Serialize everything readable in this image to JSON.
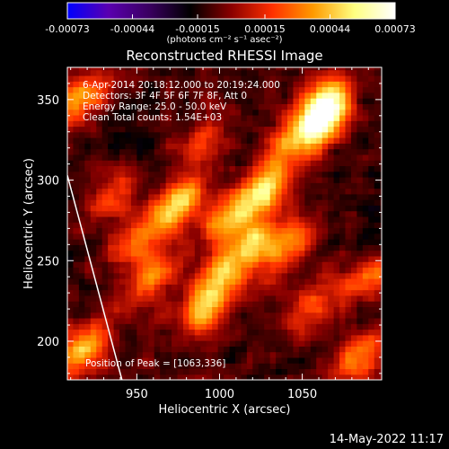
{
  "chart_data": {
    "type": "heatmap",
    "title": "Reconstructed RHESSI Image",
    "xlabel": "Heliocentric X (arcsec)",
    "ylabel": "Heliocentric Y (arcsec)",
    "xlim": [
      908,
      1098
    ],
    "ylim": [
      176,
      370
    ],
    "xticks": [
      950,
      1000,
      1050
    ],
    "yticks": [
      200,
      250,
      300,
      350
    ],
    "annotations": [
      "6-Apr-2014 20:18:12.000 to 20:19:24.000",
      "Detectors: 3F 4F 5F 6F 7F 8F, Att 0",
      "Energy Range: 25.0 - 50.0 keV",
      "Clean    Total counts: 1.54E+03"
    ],
    "peak_label": "Position of Peak = [1063,336]",
    "peak": [
      1063,
      336
    ],
    "colorbar": {
      "ticks": [
        "-0.00073",
        "-0.00044",
        "-0.00015",
        "0.00015",
        "0.00044",
        "0.00073"
      ],
      "range": [
        -0.00073,
        0.00073
      ],
      "unit": "(photons cm⁻² s⁻¹ asec⁻²)",
      "colors": [
        "#0000ff",
        "#5a00b0",
        "#3a0060",
        "#000000",
        "#8a0000",
        "#ff3000",
        "#ff9a00",
        "#ffff80",
        "#ffffff"
      ]
    },
    "limb": [
      [
        908,
        303
      ],
      [
        941,
        176
      ]
    ],
    "sources": [
      {
        "x": 1063,
        "y": 336,
        "amp": 0.00073
      },
      {
        "x": 1062,
        "y": 350,
        "amp": 0.0006
      },
      {
        "x": 975,
        "y": 285,
        "amp": 0.0006
      },
      {
        "x": 1005,
        "y": 278,
        "amp": 0.0005
      },
      {
        "x": 1027,
        "y": 292,
        "amp": 0.00055
      },
      {
        "x": 1020,
        "y": 262,
        "amp": 0.0005
      },
      {
        "x": 1040,
        "y": 258,
        "amp": 0.00045
      },
      {
        "x": 1000,
        "y": 240,
        "amp": 0.00045
      },
      {
        "x": 992,
        "y": 220,
        "amp": 0.0005
      },
      {
        "x": 960,
        "y": 240,
        "amp": 0.0004
      },
      {
        "x": 950,
        "y": 262,
        "amp": 0.00035
      },
      {
        "x": 915,
        "y": 350,
        "amp": 0.0005
      },
      {
        "x": 918,
        "y": 195,
        "amp": 0.0006
      },
      {
        "x": 1055,
        "y": 220,
        "amp": 0.0003
      },
      {
        "x": 1085,
        "y": 190,
        "amp": 0.0004
      },
      {
        "x": 1090,
        "y": 240,
        "amp": 0.00035
      },
      {
        "x": 935,
        "y": 290,
        "amp": 0.0003
      },
      {
        "x": 990,
        "y": 325,
        "amp": 0.0003
      },
      {
        "x": 1040,
        "y": 320,
        "amp": 0.00035
      }
    ]
  },
  "date_stamp": "14-May-2022 11:17"
}
